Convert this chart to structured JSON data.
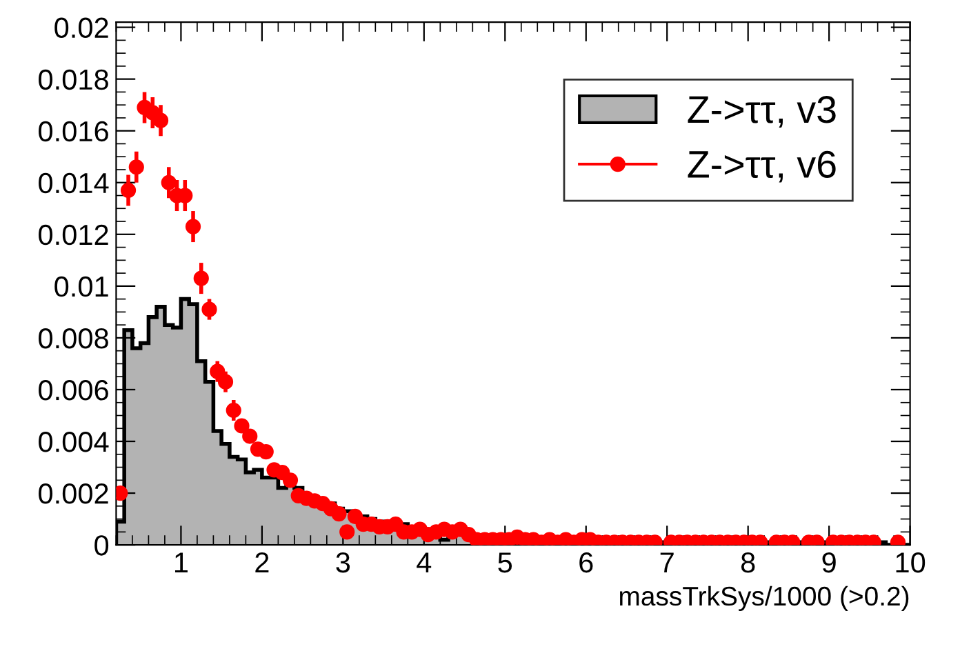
{
  "chart_data": {
    "type": "histogram",
    "xlabel": "massTrkSys/1000 (>0.2)",
    "xlim": [
      0.2,
      10
    ],
    "ylim": [
      0,
      0.0202
    ],
    "xticks": [
      1,
      2,
      3,
      4,
      5,
      6,
      7,
      8,
      9,
      10
    ],
    "yticks": [
      0,
      0.002,
      0.004,
      0.006,
      0.008,
      0.01,
      0.012,
      0.014,
      0.016,
      0.018,
      0.02
    ],
    "grid": false,
    "legend": "top right",
    "series": [
      {
        "name": "Z->ττ, v3",
        "type": "histogram",
        "color": "#b3b3b3",
        "bins": [
          0.2,
          0.3,
          0.4,
          0.5,
          0.6,
          0.7,
          0.8,
          0.9,
          1.0,
          1.1,
          1.2,
          1.3,
          1.4,
          1.5,
          1.6,
          1.7,
          1.8,
          1.9,
          2.0,
          2.1,
          2.2,
          2.3,
          2.4,
          2.5,
          2.6,
          2.7,
          2.8,
          2.9,
          3.0,
          3.1,
          3.2,
          3.3,
          3.4,
          3.5,
          3.6,
          3.7,
          3.8,
          3.9,
          4.0,
          4.1,
          4.2,
          4.3,
          4.4,
          4.5,
          4.6,
          4.7,
          4.8,
          4.9,
          5.0,
          5.1,
          5.2,
          5.3,
          5.4,
          5.5,
          5.6,
          5.7,
          5.8,
          5.9,
          6.0,
          6.1,
          6.2,
          6.3,
          6.4,
          6.5,
          6.6,
          6.7,
          6.8,
          6.9,
          7.0,
          7.1,
          7.2,
          7.3,
          7.4,
          7.5,
          7.6,
          7.7,
          7.8,
          7.9,
          8.0,
          8.1,
          8.2,
          8.3,
          8.4,
          8.5,
          8.6,
          8.7,
          8.8,
          8.9,
          9.0,
          9.1,
          9.2,
          9.3,
          9.4,
          9.5,
          9.6,
          9.7,
          9.8,
          9.9,
          10.0
        ],
        "values": [
          0.0009,
          0.0083,
          0.0076,
          0.0078,
          0.0088,
          0.0092,
          0.0085,
          0.0084,
          0.0095,
          0.0093,
          0.0071,
          0.0063,
          0.0044,
          0.0039,
          0.0034,
          0.0033,
          0.0028,
          0.0029,
          0.0026,
          0.0026,
          0.0022,
          0.0023,
          0.0022,
          0.0019,
          0.0017,
          0.0017,
          0.0016,
          0.0014,
          0.0013,
          0.0011,
          0.0011,
          0.001,
          0.0009,
          0.0009,
          0.0008,
          0.0008,
          0.0007,
          0.0007,
          0.0006,
          0.0006,
          0.0002,
          0.0004,
          0.0005,
          0.0004,
          0.0003,
          0.0003,
          0.0003,
          0.0002,
          0.0002,
          0.0002,
          0.0002,
          0.0002,
          0.0002,
          0.0002,
          0.0002,
          0.0002,
          0.0002,
          0.0002,
          0.0001,
          0.0001,
          0.0001,
          0.0001,
          0.0001,
          0.0001,
          0.0001,
          0.0001,
          0.0001,
          0.0001,
          0.0001,
          0.0001,
          0.0001,
          0.0001,
          0.0001,
          0.0001,
          0.0001,
          0.0001,
          0.0001,
          0.0001,
          0.0001,
          0.0001,
          0.0001,
          0.0001,
          0.0001,
          0.0001,
          0.0001,
          0.0001,
          0.0001,
          0.0001,
          0,
          0,
          0,
          0,
          0,
          0,
          0.0001,
          0,
          0,
          0
        ]
      },
      {
        "name": "Z->ττ, v6",
        "type": "scatter",
        "color": "#ff0000",
        "marker": "circle",
        "x": [
          0.25,
          0.35,
          0.45,
          0.55,
          0.65,
          0.75,
          0.85,
          0.95,
          1.05,
          1.15,
          1.25,
          1.35,
          1.45,
          1.55,
          1.65,
          1.75,
          1.85,
          1.95,
          2.05,
          2.15,
          2.25,
          2.35,
          2.45,
          2.55,
          2.65,
          2.75,
          2.85,
          2.95,
          3.05,
          3.15,
          3.25,
          3.35,
          3.45,
          3.55,
          3.65,
          3.75,
          3.85,
          3.95,
          4.05,
          4.15,
          4.25,
          4.35,
          4.45,
          4.55,
          4.65,
          4.75,
          4.85,
          4.95,
          5.05,
          5.15,
          5.25,
          5.35,
          5.45,
          5.55,
          5.65,
          5.75,
          5.85,
          5.95,
          6.05,
          6.15,
          6.25,
          6.35,
          6.45,
          6.55,
          6.65,
          6.75,
          6.85,
          6.95,
          7.05,
          7.15,
          7.25,
          7.35,
          7.45,
          7.55,
          7.65,
          7.75,
          7.85,
          7.95,
          8.05,
          8.15,
          8.25,
          8.35,
          8.45,
          8.55,
          8.65,
          8.75,
          8.85,
          8.95,
          9.05,
          9.15,
          9.25,
          9.35,
          9.45,
          9.55,
          9.65,
          9.75,
          9.85
        ],
        "values": [
          0.002,
          0.0137,
          0.0146,
          0.0169,
          0.0167,
          0.0164,
          0.014,
          0.0135,
          0.0135,
          0.0123,
          0.0103,
          0.0091,
          0.0067,
          0.0063,
          0.0052,
          0.0046,
          0.0042,
          0.0037,
          0.0036,
          0.0029,
          0.0028,
          0.0025,
          0.0019,
          0.0018,
          0.0017,
          0.0016,
          0.0014,
          0.0012,
          0.0005,
          0.0011,
          0.0008,
          0.0008,
          0.0007,
          0.0007,
          0.0008,
          0.0005,
          0.0005,
          0.0006,
          0.0004,
          0.0005,
          0.0006,
          0.0005,
          0.0006,
          0.0004,
          0.0002,
          0.0002,
          0.0002,
          0.0002,
          0.0002,
          0.0003,
          0.0002,
          0.0002,
          0.0001,
          0.0002,
          0.0001,
          0.0002,
          0.0001,
          0.0002,
          0.0002,
          0.0001,
          0.0001,
          0.0001,
          0.0001,
          0.0001,
          0.0001,
          0.0001,
          0.0001,
          null,
          0.0001,
          0.0001,
          0.0001,
          0.0001,
          0.0001,
          0.0001,
          0.0001,
          0.0001,
          0.0001,
          0.0001,
          0.0001,
          0.0001,
          null,
          0.0001,
          0.0001,
          0.0001,
          null,
          0.0001,
          0.0001,
          null,
          0.0001,
          0.0001,
          0.0001,
          0.0001,
          0.0001,
          0.0001,
          null,
          null,
          0.0001
        ],
        "errors": [
          0.0002,
          0.0006,
          0.0006,
          0.0006,
          0.0006,
          0.0006,
          0.0006,
          0.0006,
          0.0006,
          0.0006,
          0.0006,
          0.0004,
          0.0004,
          0.0004,
          0.0004,
          0.0002,
          0.0002,
          0.0002,
          0.0002,
          0.0002,
          0.0002,
          0.0002,
          null,
          null,
          null,
          null,
          null,
          null,
          null,
          null,
          null,
          null,
          null,
          null,
          null,
          null,
          null,
          null,
          null,
          null,
          null,
          null,
          null,
          null,
          null,
          null,
          null,
          null,
          null,
          null,
          null,
          null,
          null,
          null,
          null,
          null,
          null,
          null,
          null,
          null,
          null,
          null,
          null,
          null,
          null,
          null,
          null,
          null,
          null,
          null,
          null,
          null,
          null,
          null,
          null,
          null,
          null,
          null,
          null,
          null,
          null,
          null,
          null,
          null,
          null,
          null,
          null,
          null,
          null,
          null,
          null,
          null,
          null,
          null,
          null,
          null,
          null
        ]
      }
    ]
  }
}
